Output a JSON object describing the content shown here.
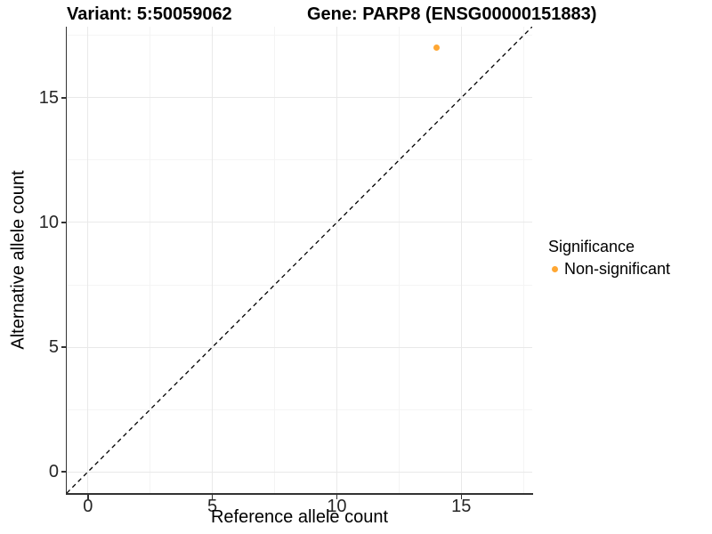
{
  "header": {
    "variant_title": "Variant: 5:50059062",
    "gene_title": "Gene: PARP8 (ENSG00000151883)"
  },
  "chart_data": {
    "type": "scatter",
    "xlabel": "Reference allele count",
    "ylabel": "Alternative allele count",
    "x_ticks": [
      0,
      5,
      10,
      15
    ],
    "y_ticks": [
      0,
      5,
      10,
      15
    ],
    "x_minor_ticks": [
      2.5,
      7.5,
      12.5,
      17.5
    ],
    "y_minor_ticks": [
      2.5,
      7.5,
      12.5,
      17.5
    ],
    "xlim": [
      -0.85,
      17.85
    ],
    "ylim": [
      -0.85,
      17.85
    ],
    "grid": "major+minor on white background",
    "identity_line": {
      "style": "dashed",
      "color": "#000000",
      "from": [
        -0.85,
        -0.85
      ],
      "to": [
        17.85,
        17.85
      ]
    },
    "series": [
      {
        "name": "Non-significant",
        "color": "#FFA733",
        "points": [
          {
            "x": 14,
            "y": 17
          }
        ]
      }
    ],
    "legend": {
      "title": "Significance",
      "position": "right",
      "entries": [
        {
          "label": "Non-significant",
          "color": "#FFA733"
        }
      ]
    }
  },
  "colors": {
    "point_orange": "#FFA733",
    "axis": "#333333",
    "title_text": "#000000"
  }
}
